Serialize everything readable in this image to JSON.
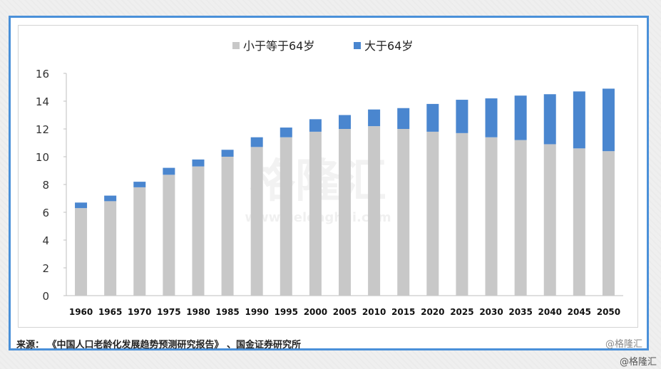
{
  "chart_data": {
    "type": "bar",
    "stacked": true,
    "categories": [
      "1960",
      "1965",
      "1970",
      "1975",
      "1980",
      "1985",
      "1990",
      "1995",
      "2000",
      "2005",
      "2010",
      "2015",
      "2020",
      "2025",
      "2030",
      "2035",
      "2040",
      "2045",
      "2050"
    ],
    "series": [
      {
        "name": "小于等于64岁",
        "color": "#c8c8c8",
        "values": [
          6.3,
          6.8,
          7.8,
          8.7,
          9.3,
          10.0,
          10.7,
          11.4,
          11.8,
          12.0,
          12.2,
          12.0,
          11.8,
          11.7,
          11.4,
          11.2,
          10.9,
          10.6,
          10.4
        ]
      },
      {
        "name": "大于64岁",
        "color": "#4a86cf",
        "values": [
          0.4,
          0.4,
          0.4,
          0.5,
          0.5,
          0.5,
          0.7,
          0.7,
          0.9,
          1.0,
          1.2,
          1.5,
          2.0,
          2.4,
          2.8,
          3.2,
          3.6,
          4.1,
          4.5
        ]
      }
    ],
    "ylim": [
      0,
      16
    ],
    "yticks": [
      "0",
      "2",
      "4",
      "6",
      "8",
      "10",
      "12",
      "14",
      "16"
    ],
    "grid": false,
    "legend_position": "top-center"
  },
  "watermark": {
    "text": "格隆汇",
    "url": "www.gelonghui.com"
  },
  "footer": {
    "source_note": "来源：  《中国人口老龄化发展趋势预测研究报告》 、国金证券研究所",
    "credit_inner": "@格隆汇",
    "credit_outer": "@格隆汇"
  }
}
